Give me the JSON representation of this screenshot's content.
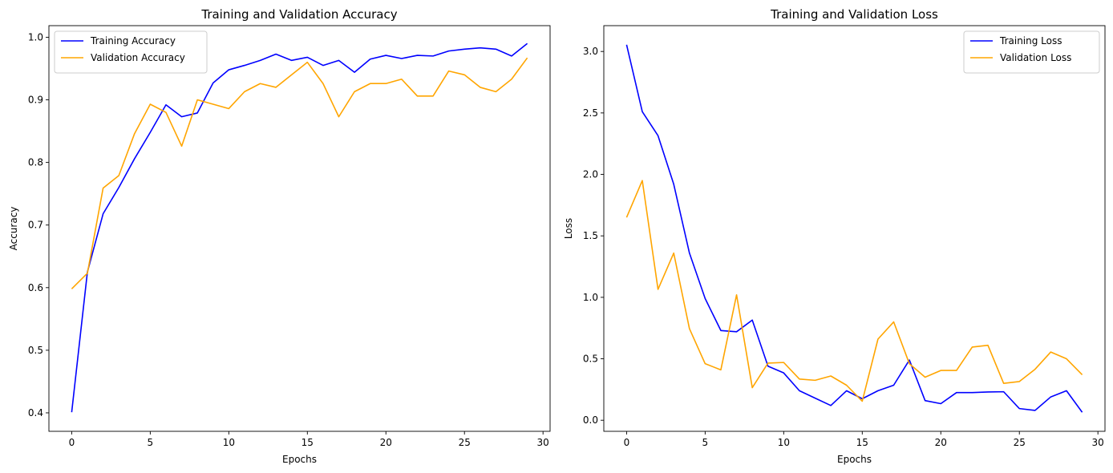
{
  "chart_data": [
    {
      "type": "line",
      "title": "Training and Validation Accuracy",
      "xlabel": "Epochs",
      "ylabel": "Accuracy",
      "xlim": [
        -1.45,
        30.45
      ],
      "ylim": [
        0.3705,
        1.0185
      ],
      "xticks": [
        0,
        5,
        10,
        15,
        20,
        25,
        30
      ],
      "yticks": [
        0.4,
        0.5,
        0.6,
        0.7,
        0.8,
        0.9,
        1.0
      ],
      "ytick_labels": [
        "0.4",
        "0.5",
        "0.6",
        "0.7",
        "0.8",
        "0.9",
        "1.0"
      ],
      "grid": false,
      "legend_position": "upper-left",
      "x": [
        0,
        1,
        2,
        3,
        4,
        5,
        6,
        7,
        8,
        9,
        10,
        11,
        12,
        13,
        14,
        15,
        16,
        17,
        18,
        19,
        20,
        21,
        22,
        23,
        24,
        25,
        26,
        27,
        28,
        29
      ],
      "series": [
        {
          "name": "Training Accuracy",
          "color": "#0000ff",
          "values": [
            0.401,
            0.625,
            0.718,
            0.76,
            0.806,
            0.848,
            0.892,
            0.873,
            0.879,
            0.927,
            0.948,
            0.955,
            0.963,
            0.973,
            0.963,
            0.968,
            0.955,
            0.963,
            0.944,
            0.965,
            0.971,
            0.966,
            0.971,
            0.97,
            0.978,
            0.981,
            0.983,
            0.981,
            0.97,
            0.99
          ]
        },
        {
          "name": "Validation Accuracy",
          "color": "#ffa500",
          "values": [
            0.598,
            0.623,
            0.759,
            0.779,
            0.846,
            0.893,
            0.88,
            0.826,
            0.9,
            0.893,
            0.886,
            0.913,
            0.926,
            0.92,
            0.94,
            0.96,
            0.926,
            0.873,
            0.913,
            0.926,
            0.926,
            0.933,
            0.906,
            0.906,
            0.946,
            0.94,
            0.92,
            0.913,
            0.933,
            0.967
          ]
        }
      ]
    },
    {
      "type": "line",
      "title": "Training and Validation Loss",
      "xlabel": "Epochs",
      "ylabel": "Loss",
      "xlim": [
        -1.45,
        30.45
      ],
      "ylim": [
        -0.09,
        3.21
      ],
      "xticks": [
        0,
        5,
        10,
        15,
        20,
        25,
        30
      ],
      "yticks": [
        0.0,
        0.5,
        1.0,
        1.5,
        2.0,
        2.5,
        3.0
      ],
      "ytick_labels": [
        "0.0",
        "0.5",
        "1.0",
        "1.5",
        "2.0",
        "2.5",
        "3.0"
      ],
      "grid": false,
      "legend_position": "upper-right",
      "x": [
        0,
        1,
        2,
        3,
        4,
        5,
        6,
        7,
        8,
        9,
        10,
        11,
        12,
        13,
        14,
        15,
        16,
        17,
        18,
        19,
        20,
        21,
        22,
        23,
        24,
        25,
        26,
        27,
        28,
        29
      ],
      "series": [
        {
          "name": "Training Loss",
          "color": "#0000ff",
          "values": [
            3.055,
            2.51,
            2.315,
            1.92,
            1.36,
            0.99,
            0.73,
            0.72,
            0.815,
            0.44,
            0.385,
            0.24,
            0.18,
            0.12,
            0.24,
            0.175,
            0.24,
            0.285,
            0.49,
            0.16,
            0.135,
            0.225,
            0.225,
            0.23,
            0.232,
            0.095,
            0.08,
            0.19,
            0.24,
            0.065
          ]
        },
        {
          "name": "Validation Loss",
          "color": "#ffa500",
          "values": [
            1.65,
            1.95,
            1.065,
            1.36,
            0.745,
            0.46,
            0.41,
            1.02,
            0.265,
            0.465,
            0.47,
            0.335,
            0.325,
            0.36,
            0.285,
            0.155,
            0.66,
            0.8,
            0.46,
            0.35,
            0.405,
            0.405,
            0.595,
            0.61,
            0.3,
            0.315,
            0.415,
            0.555,
            0.5,
            0.37
          ]
        }
      ]
    }
  ]
}
